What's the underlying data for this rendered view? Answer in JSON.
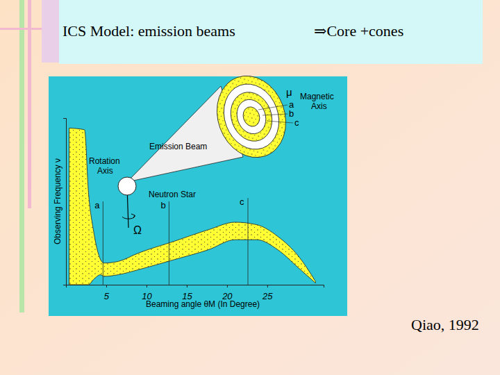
{
  "slide": {
    "title": "ICS Model: emission beams",
    "title_arrow": "⇒Core +cones",
    "credit": "Qiao, 1992"
  },
  "diagram": {
    "magnetic_axis": [
      "Magnetic",
      "Axis"
    ],
    "mu": "μ",
    "rings": [
      "a",
      "b",
      "c"
    ],
    "emission_beam": "Emission Beam",
    "rotation_axis": [
      "Rotation",
      "Axis"
    ],
    "neutron_star": "Neutron Star",
    "omega": "Ω"
  },
  "chart_data": {
    "type": "area",
    "x_label": "Beaming angle θM (In Degree)",
    "y_label": "Observing Frequency ν",
    "x": [
      0.4,
      2.3,
      2.8,
      3.4,
      4.3,
      4.7,
      6.5,
      9,
      13.4,
      17.7,
      21,
      23.7,
      26.3,
      28.9,
      31
    ],
    "lower": [
      0,
      0,
      0,
      0.3,
      0.6,
      0.5,
      0.6,
      0.9,
      1.5,
      2.1,
      2.7,
      2.7,
      2.1,
      1.0,
      0.1
    ],
    "upper": [
      9.4,
      9.3,
      5.5,
      3.3,
      1.5,
      1.3,
      1.4,
      1.9,
      2.6,
      3.3,
      3.75,
      3.6,
      2.9,
      1.7,
      0.2
    ],
    "color": "#ffff33",
    "xlim": [
      0,
      32
    ],
    "xticks": [
      5,
      10,
      15,
      20,
      25
    ],
    "ylim": [
      0,
      10
    ],
    "yticks": [],
    "tick_labels": "x",
    "markers": [
      {
        "label": "a",
        "x": 4.6,
        "top": 5.0
      },
      {
        "label": "b",
        "x": 12.8,
        "top": 5.0
      },
      {
        "label": "c",
        "x": 22.6,
        "top": 5.2
      }
    ]
  }
}
